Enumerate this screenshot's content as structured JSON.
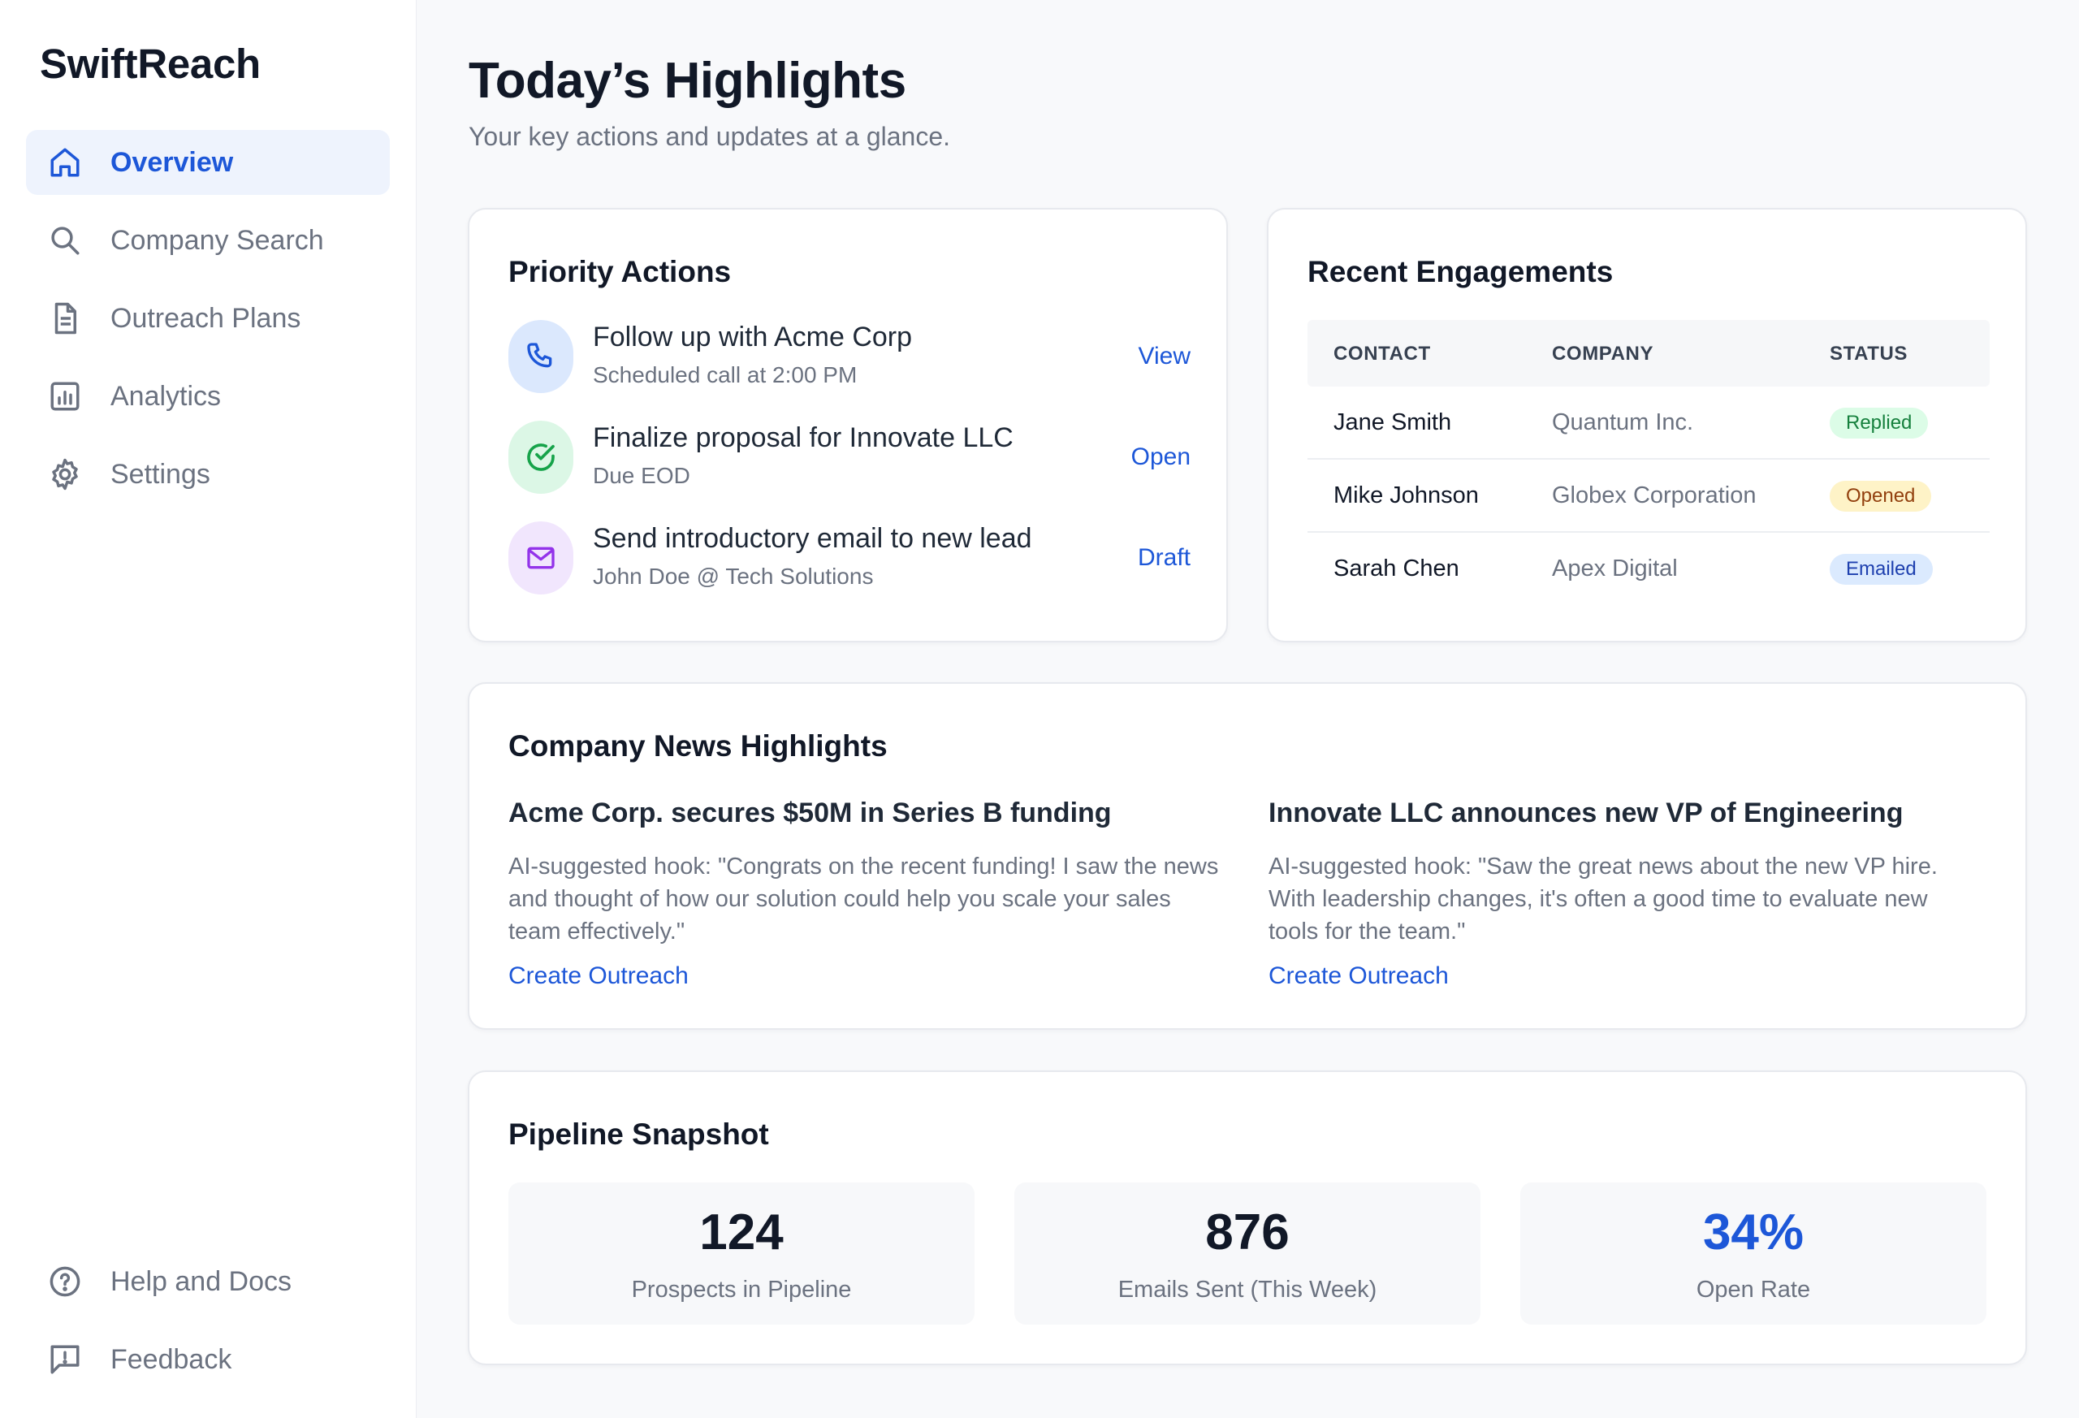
{
  "app": {
    "brand": "SwiftReach"
  },
  "sidebar": {
    "items": [
      {
        "label": "Overview",
        "icon": "home-icon",
        "active": true
      },
      {
        "label": "Company Search",
        "icon": "search-icon"
      },
      {
        "label": "Outreach Plans",
        "icon": "document-icon"
      },
      {
        "label": "Analytics",
        "icon": "chart-icon"
      },
      {
        "label": "Settings",
        "icon": "gear-icon"
      }
    ],
    "bottom": [
      {
        "label": "Help and Docs",
        "icon": "help-circle-icon"
      },
      {
        "label": "Feedback",
        "icon": "feedback-icon"
      }
    ]
  },
  "header": {
    "title": "Today’s Highlights",
    "subtitle": "Your key actions and updates at a glance."
  },
  "priority": {
    "title": "Priority Actions",
    "items": [
      {
        "title": "Follow up with Acme Corp",
        "sub": "Scheduled call at 2:00 PM",
        "action": "View",
        "icon": "phone-icon"
      },
      {
        "title": "Finalize proposal for Innovate LLC",
        "sub": "Due EOD",
        "action": "Open",
        "icon": "check-circle-icon"
      },
      {
        "title": "Send introductory email to new lead",
        "sub": "John Doe @ Tech Solutions",
        "action": "Draft",
        "icon": "mail-icon"
      }
    ]
  },
  "engagements": {
    "title": "Recent Engagements",
    "columns": [
      "CONTACT",
      "COMPANY",
      "STATUS"
    ],
    "rows": [
      {
        "contact": "Jane Smith",
        "company": "Quantum Inc.",
        "status": "Replied"
      },
      {
        "contact": "Mike Johnson",
        "company": "Globex Corporation",
        "status": "Opened"
      },
      {
        "contact": "Sarah Chen",
        "company": "Apex Digital",
        "status": "Emailed"
      }
    ]
  },
  "news": {
    "title": "Company News Highlights",
    "items": [
      {
        "headline": "Acme Corp. secures $50M in Series B funding",
        "hook": "AI-suggested hook: \"Congrats on the recent funding! I saw the news and thought of how our solution could help you scale your sales team effectively.\"",
        "link": "Create Outreach"
      },
      {
        "headline": "Innovate LLC announces new VP of Engineering",
        "hook": "AI-suggested hook: \"Saw the great news about the new VP hire. With leadership changes, it's often a good time to evaluate new tools for the team.\"",
        "link": "Create Outreach"
      }
    ]
  },
  "pipeline": {
    "title": "Pipeline Snapshot",
    "stats": [
      {
        "value": "124",
        "label": "Prospects in Pipeline"
      },
      {
        "value": "876",
        "label": "Emails Sent (This Week)"
      },
      {
        "value": "34%",
        "label": "Open Rate",
        "accent": "#1d57d8"
      }
    ]
  },
  "colors": {
    "accent": "#1d57d8",
    "replied_bg": "#dcfce7",
    "replied_fg": "#15803d",
    "opened_bg": "#fef3c7",
    "opened_fg": "#92400e",
    "emailed_bg": "#dbeafe",
    "emailed_fg": "#1e40af"
  }
}
